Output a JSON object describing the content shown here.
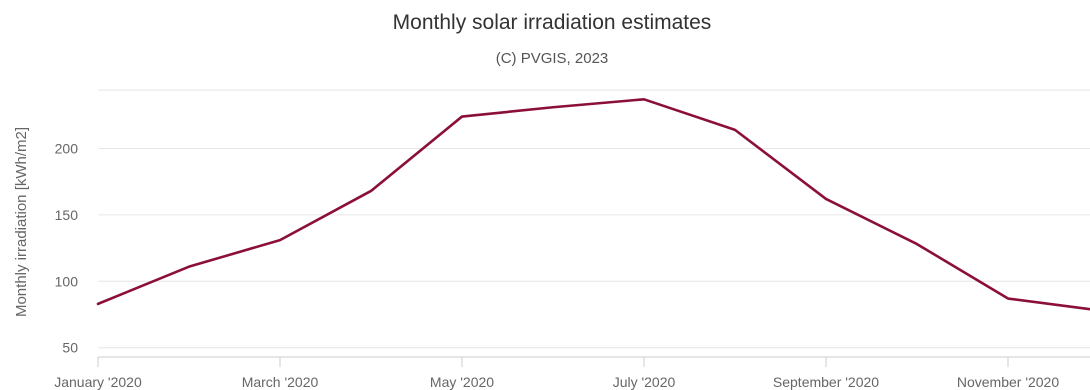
{
  "chart_data": {
    "type": "line",
    "title": "Monthly solar irradiation estimates",
    "subtitle": "(C) PVGIS, 2023",
    "ylabel": "Monthly irradiation [kWh/m2]",
    "xlabel": "",
    "x": [
      "January '2020",
      "February '2020",
      "March '2020",
      "April '2020",
      "May '2020",
      "June '2020",
      "July '2020",
      "August '2020",
      "September '2020",
      "October '2020",
      "November '2020",
      "December '2020"
    ],
    "x_tick_labels": [
      "January '2020",
      "March '2020",
      "May '2020",
      "July '2020",
      "September '2020",
      "November '2020"
    ],
    "y_ticks": [
      50,
      100,
      150,
      200
    ],
    "ylim": [
      43,
      244
    ],
    "grid": true,
    "series": [
      {
        "color": "#8b0f3a",
        "values": [
          83,
          111,
          131,
          168,
          224,
          231,
          237,
          214,
          162,
          128,
          87,
          79
        ]
      }
    ]
  }
}
